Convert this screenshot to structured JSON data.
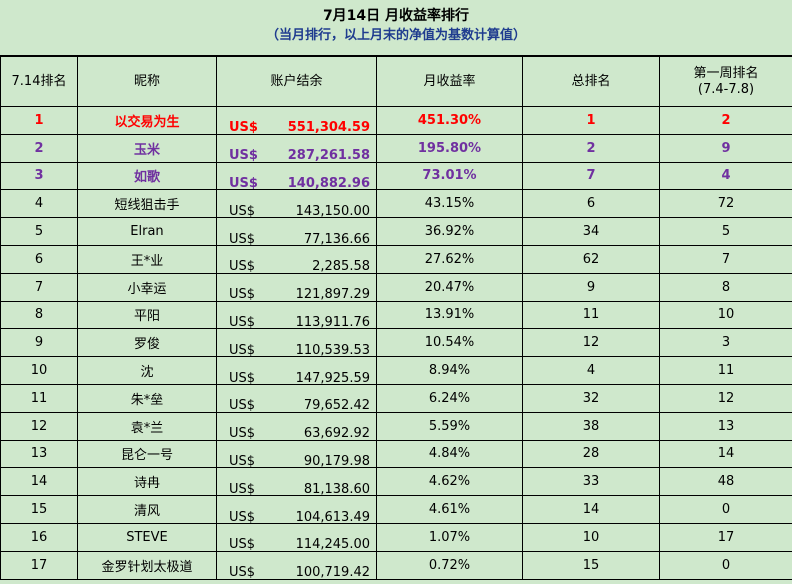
{
  "title": "7月14日 月收益率排行",
  "subtitle": "（当月排行，以上月末的净值为基数计算值）",
  "columns": [
    "7.14排名",
    "昵称",
    "账户结余",
    "月收益率",
    "总排名",
    "第一周排名",
    "(7.4-7.8)"
  ],
  "currency": "US$",
  "colors": {
    "background": "#cfe8cc",
    "first_place": "#ff0000",
    "top3": "#7030a0",
    "subtitle": "#1f3c8f"
  },
  "rows": [
    {
      "rank": "1",
      "name": "以交易为生",
      "balance": "551,304.59",
      "rate": "451.30%",
      "total": "1",
      "week1": "2"
    },
    {
      "rank": "2",
      "name": "玉米",
      "balance": "287,261.58",
      "rate": "195.80%",
      "total": "2",
      "week1": "9"
    },
    {
      "rank": "3",
      "name": "如歌",
      "balance": "140,882.96",
      "rate": "73.01%",
      "total": "7",
      "week1": "4"
    },
    {
      "rank": "4",
      "name": "短线狙击手",
      "balance": "143,150.00",
      "rate": "43.15%",
      "total": "6",
      "week1": "72"
    },
    {
      "rank": "5",
      "name": "Elran",
      "balance": "77,136.66",
      "rate": "36.92%",
      "total": "34",
      "week1": "5"
    },
    {
      "rank": "6",
      "name": "王*业",
      "balance": "2,285.58",
      "rate": "27.62%",
      "total": "62",
      "week1": "7"
    },
    {
      "rank": "7",
      "name": "小幸运",
      "balance": "121,897.29",
      "rate": "20.47%",
      "total": "9",
      "week1": "8"
    },
    {
      "rank": "8",
      "name": "平阳",
      "balance": "113,911.76",
      "rate": "13.91%",
      "total": "11",
      "week1": "10"
    },
    {
      "rank": "9",
      "name": "罗俊",
      "balance": "110,539.53",
      "rate": "10.54%",
      "total": "12",
      "week1": "3"
    },
    {
      "rank": "10",
      "name": "沈",
      "balance": "147,925.59",
      "rate": "8.94%",
      "total": "4",
      "week1": "11"
    },
    {
      "rank": "11",
      "name": "朱*垒",
      "balance": "79,652.42",
      "rate": "6.24%",
      "total": "32",
      "week1": "12"
    },
    {
      "rank": "12",
      "name": "袁*兰",
      "balance": "63,692.92",
      "rate": "5.59%",
      "total": "38",
      "week1": "13"
    },
    {
      "rank": "13",
      "name": "昆仑一号",
      "balance": "90,179.98",
      "rate": "4.84%",
      "total": "28",
      "week1": "14"
    },
    {
      "rank": "14",
      "name": "诗冉",
      "balance": "81,138.60",
      "rate": "4.62%",
      "total": "33",
      "week1": "48"
    },
    {
      "rank": "15",
      "name": "清风",
      "balance": "104,613.49",
      "rate": "4.61%",
      "total": "14",
      "week1": "0"
    },
    {
      "rank": "16",
      "name": "STEVE",
      "balance": "114,245.00",
      "rate": "1.07%",
      "total": "10",
      "week1": "17"
    },
    {
      "rank": "17",
      "name": "金罗针划太极道",
      "balance": "100,719.42",
      "rate": "0.72%",
      "total": "15",
      "week1": "0"
    }
  ]
}
